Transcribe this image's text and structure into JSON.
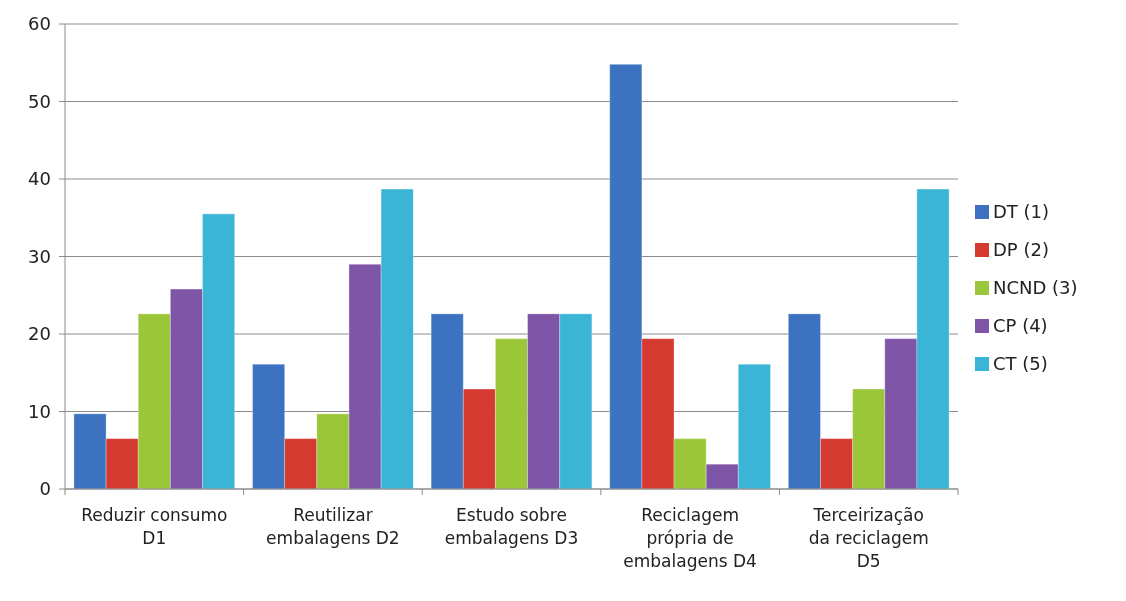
{
  "chart_data": {
    "type": "bar",
    "categories": [
      "Reduzir consumo D1",
      "Reutilizar embalagens D2",
      "Estudo sobre embalagens D3",
      "Reciclagem própria de embalagens D4",
      "Terceirização da reciclagem D5"
    ],
    "series": [
      {
        "name": "DT (1)",
        "color": "#3c72c0",
        "values": [
          9.7,
          16.1,
          22.6,
          54.8,
          22.6
        ]
      },
      {
        "name": "DP (2)",
        "color": "#d43a30",
        "values": [
          6.5,
          6.5,
          12.9,
          19.4,
          6.5
        ]
      },
      {
        "name": "NCND (3)",
        "color": "#9cc63a",
        "values": [
          22.6,
          9.7,
          19.4,
          6.5,
          12.9
        ]
      },
      {
        "name": "CP (4)",
        "color": "#7f55a8",
        "values": [
          25.8,
          29.0,
          22.6,
          3.2,
          19.4
        ]
      },
      {
        "name": "CT (5)",
        "color": "#3ab5d6",
        "values": [
          35.5,
          38.7,
          22.6,
          16.1,
          38.7
        ]
      }
    ],
    "ylim": [
      0,
      60
    ],
    "yticks": [
      0,
      10,
      20,
      30,
      40,
      50,
      60
    ],
    "grid": "y",
    "legend": "right"
  }
}
